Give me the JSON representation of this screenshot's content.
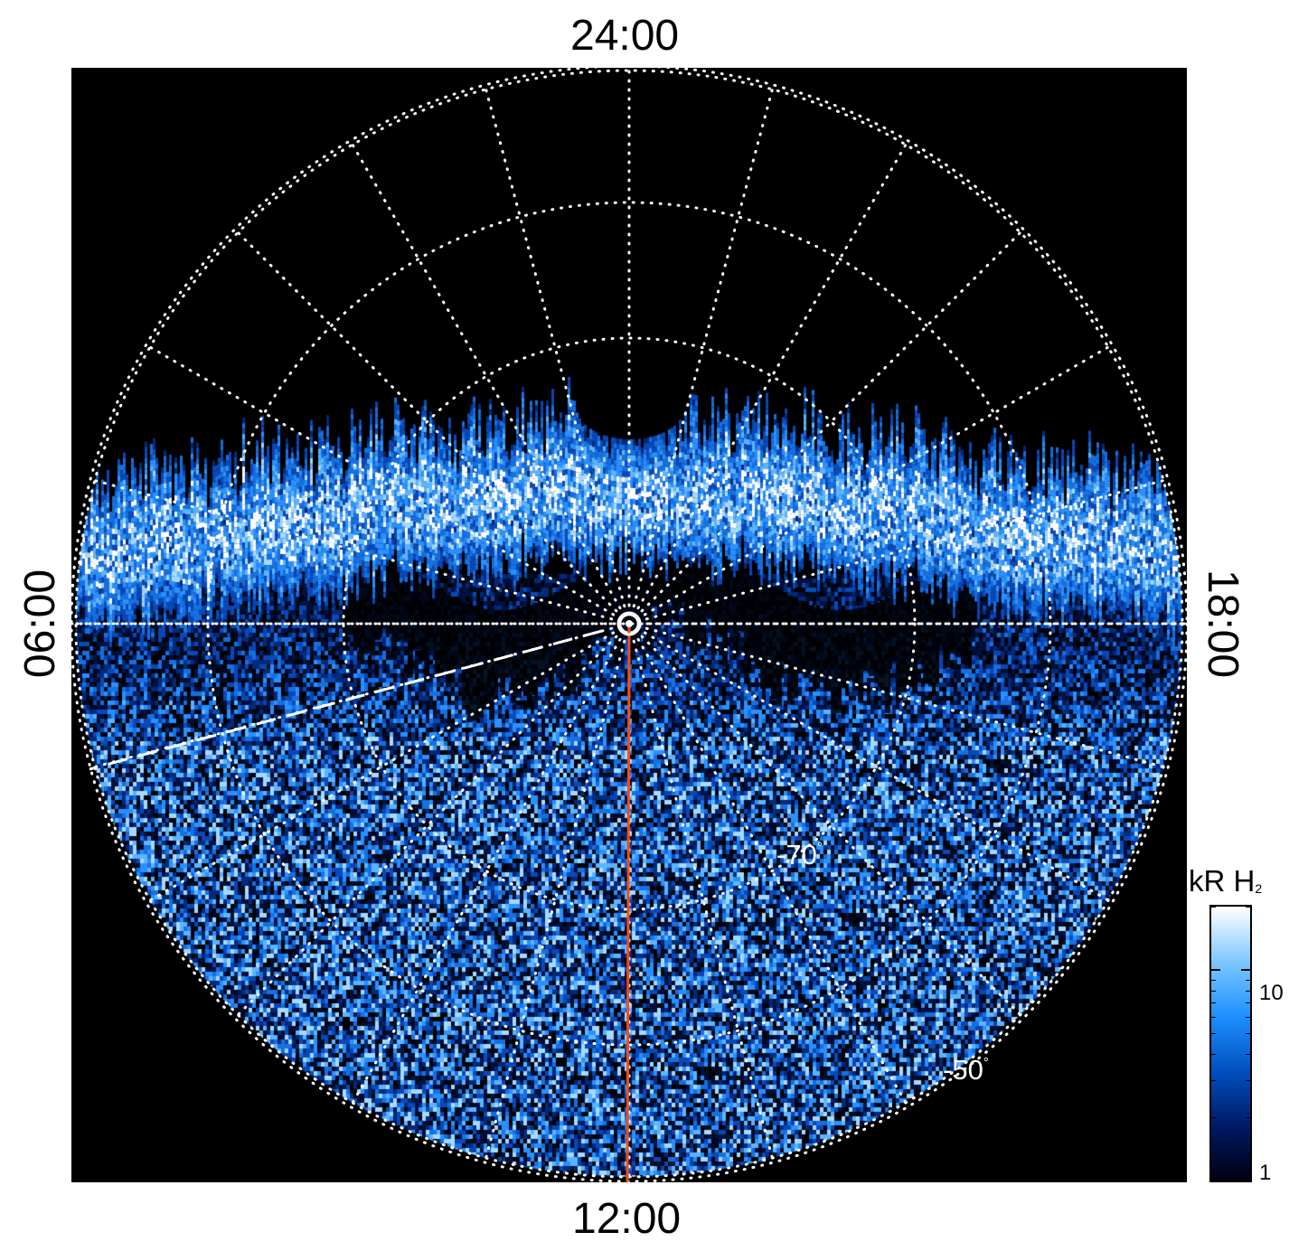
{
  "local_time_labels": {
    "top": "24:00",
    "bottom": "12:00",
    "left": "06:00",
    "right": "18:00"
  },
  "latitude_labels": [
    {
      "text": "-70",
      "unit": "°"
    },
    {
      "text": "-50",
      "unit": "°"
    }
  ],
  "colorbar": {
    "title": "kR H",
    "title_subscript": "2",
    "scale": "log",
    "range": [
      1,
      20
    ],
    "tick_labels": [
      "10",
      "1"
    ],
    "colors": [
      "#000010",
      "#001a66",
      "#0050c0",
      "#1e90ff",
      "#7ec8ff",
      "#ffffff"
    ]
  },
  "projection": {
    "type": "polar",
    "hemisphere": "south",
    "latitude_circles": [
      -50,
      -60,
      -70,
      -80
    ],
    "meridian_spacing_hours": 1,
    "grid_style": "white dotted"
  },
  "markers": {
    "noon_line_color": "#ff4a10",
    "dashed_line_color": "#ffffff",
    "pole_marker": "circle"
  }
}
